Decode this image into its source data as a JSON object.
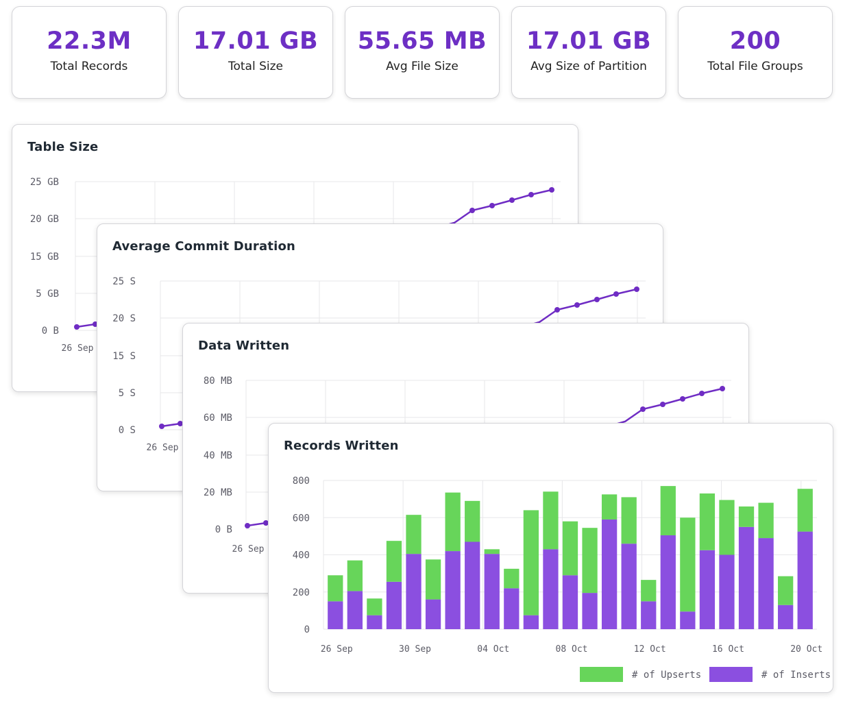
{
  "stats": [
    {
      "value": "22.3M",
      "label": "Total Records"
    },
    {
      "value": "17.01 GB",
      "label": "Total Size"
    },
    {
      "value": "55.65 MB",
      "label": "Avg File Size"
    },
    {
      "value": "17.01 GB",
      "label": "Avg Size of Partition"
    },
    {
      "value": "200",
      "label": "Total File Groups"
    }
  ],
  "colors": {
    "accent": "#6d2fc4",
    "inserts": "#8b4fe0",
    "upserts": "#67d55a",
    "line": "#6f2cc4"
  },
  "cards": {
    "table_size": {
      "title": "Table Size",
      "yticks": [
        "25 GB",
        "20 GB",
        "15 GB",
        "5 GB",
        "0 B"
      ],
      "xtick": "26 Sep"
    },
    "commit_duration": {
      "title": "Average Commit Duration",
      "yticks": [
        "25 S",
        "20 S",
        "15 S",
        "5 S",
        "0 S"
      ],
      "xtick": "26 Sep"
    },
    "data_written": {
      "title": "Data Written",
      "yticks": [
        "80 MB",
        "60 MB",
        "40 MB",
        "20 MB",
        "0 B"
      ],
      "xtick": "26 Sep"
    }
  },
  "chart_data": {
    "type": "bar",
    "title": "Records Written",
    "stacked": true,
    "ylim": [
      0,
      800
    ],
    "yticks": [
      0,
      200,
      400,
      600,
      800
    ],
    "xtick_labels": [
      "26 Sep",
      "30 Sep",
      "04 Oct",
      "08 Oct",
      "12 Oct",
      "16 Oct",
      "20 Oct"
    ],
    "xtick_label_positions": [
      0,
      4,
      8,
      12,
      16,
      20,
      24
    ],
    "grid": true,
    "legend_position": "bottom-right",
    "series": [
      {
        "name": "# of Inserts",
        "color": "#8b4fe0",
        "values": [
          150,
          205,
          75,
          255,
          405,
          160,
          420,
          470,
          405,
          220,
          75,
          430,
          290,
          195,
          590,
          460,
          150,
          505,
          95,
          425,
          400,
          550,
          490,
          130,
          525
        ]
      },
      {
        "name": "# of Upserts",
        "color": "#67d55a",
        "values": [
          140,
          165,
          90,
          220,
          210,
          215,
          315,
          220,
          25,
          105,
          565,
          310,
          290,
          350,
          135,
          250,
          115,
          265,
          505,
          305,
          295,
          110,
          190,
          155,
          230
        ]
      }
    ]
  }
}
